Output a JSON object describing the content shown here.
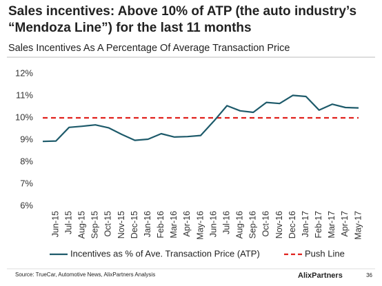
{
  "chart_data": {
    "type": "line",
    "title": [
      "Sales incentives: Above 10% of ATP (the auto industry’s",
      "“Mendoza Line”) for the last 11 months"
    ],
    "subtitle": "Sales Incentives As A Percentage Of Average Transaction Price",
    "categories": [
      null,
      "Jun-15",
      "Jul-15",
      "Aug-15",
      "Sep-15",
      "Oct-15",
      "Nov-15",
      "Dec-15",
      "Jan-16",
      "Feb-16",
      "Mar-16",
      "Apr-16",
      "May-16",
      "Jun-16",
      "Jul-16",
      "Aug-16",
      "Sep-16",
      "Oct-16",
      "Nov-16",
      "Dec-16",
      "Jan-17",
      "Feb-17",
      "Mar-17",
      "Apr-17",
      "May-17"
    ],
    "series": [
      {
        "name": "Incentives as % of Ave. Transaction Price (ATP)",
        "color": "#1d5a6a",
        "dash": false,
        "values": [
          8.93,
          8.95,
          9.57,
          9.62,
          9.68,
          9.55,
          9.25,
          8.98,
          9.03,
          9.28,
          9.13,
          9.15,
          9.2,
          9.85,
          10.55,
          10.32,
          10.25,
          10.7,
          10.65,
          11.02,
          10.97,
          10.35,
          10.62,
          10.47,
          10.45
        ]
      },
      {
        "name": "Push Line",
        "color": "#e0201c",
        "dash": true,
        "values": [
          10,
          10,
          10,
          10,
          10,
          10,
          10,
          10,
          10,
          10,
          10,
          10,
          10,
          10,
          10,
          10,
          10,
          10,
          10,
          10,
          10,
          10,
          10,
          10,
          10
        ]
      }
    ],
    "ylim": [
      6,
      12
    ],
    "yticks": [
      {
        "value": 6,
        "label": "6%"
      },
      {
        "value": 7,
        "label": "7%"
      },
      {
        "value": 8,
        "label": "8%"
      },
      {
        "value": 9,
        "label": "9%"
      },
      {
        "value": 10,
        "label": "10%"
      },
      {
        "value": 11,
        "label": "11%"
      },
      {
        "value": 12,
        "label": "12%"
      }
    ],
    "grid": false,
    "legend": "bottom",
    "source": "Source:  TrueCar, Automotive News, AlixPartners Analysis",
    "logo": "AlixPartners",
    "page_number": "36"
  }
}
